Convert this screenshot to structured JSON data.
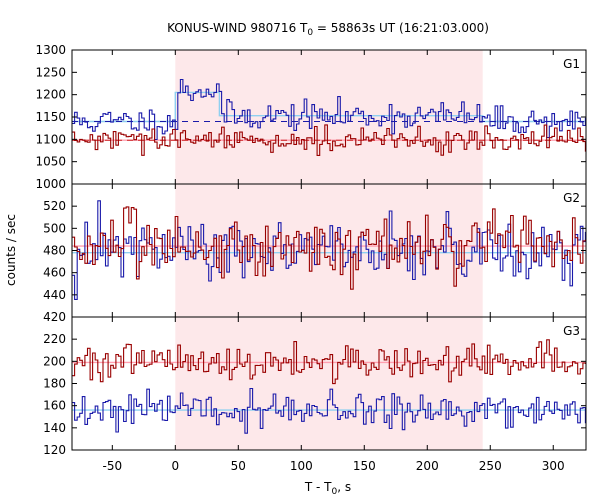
{
  "chart_data": {
    "type": "line",
    "title": "KONUS-WIND 980716 T",
    "title_sub": "0",
    "title_rest": " = 58863s UT (16:21:03.000)",
    "ylabel": "counts / sec",
    "xlabel": "T - T",
    "xlabel_sub": "0",
    "xlabel_rest": ", s",
    "xlim": [
      -82,
      326
    ],
    "xticks": [
      -50,
      0,
      50,
      100,
      150,
      200,
      250,
      300
    ],
    "highlight": {
      "from": 0,
      "to": 244,
      "color": "#fde8ea"
    },
    "colors": {
      "red": "#990000",
      "blue": "#1a1aaa",
      "red_fit": "#ff9fb0",
      "blue_fit": "#8fd0f0",
      "red_dash": "#cc2222"
    },
    "panels": [
      {
        "name": "G1",
        "ylim": [
          1000,
          1300
        ],
        "yticks": [
          1000,
          1050,
          1100,
          1150,
          1200,
          1250,
          1300
        ],
        "series": [
          {
            "color": "blue",
            "base": 1140,
            "noise": 16,
            "seed": 11,
            "bumps": [
              {
                "from": 0,
                "to": 35,
                "level": 70
              },
              {
                "from": 35,
                "to": 244,
                "level": 12
              }
            ]
          },
          {
            "color": "red",
            "base": 1098,
            "noise": 13,
            "seed": 29,
            "bumps": []
          }
        ],
        "fits": [
          {
            "color": "blue_fit",
            "steps": [
              [
                -82,
                1140
              ],
              [
                0,
                1140
              ],
              [
                0,
                1205
              ],
              [
                35,
                1205
              ],
              [
                35,
                1153
              ],
              [
                244,
                1153
              ],
              [
                244,
                1140
              ],
              [
                326,
                1140
              ]
            ]
          },
          {
            "color": "red_fit",
            "steps": [
              [
                -82,
                1098
              ],
              [
                326,
                1098
              ]
            ]
          }
        ],
        "dashes": [
          {
            "color": "blue",
            "value": 1140
          },
          {
            "color": "red_dash",
            "value": 1098
          }
        ]
      },
      {
        "name": "G2",
        "ylim": [
          420,
          540
        ],
        "yticks": [
          420,
          440,
          460,
          480,
          500,
          520
        ],
        "series": [
          {
            "color": "blue",
            "base": 480,
            "noise": 14,
            "seed": 47,
            "bumps": []
          },
          {
            "color": "red",
            "base": 484,
            "noise": 14,
            "seed": 83,
            "bumps": []
          }
        ],
        "fits": [
          {
            "color": "blue_fit",
            "steps": [
              [
                -82,
                478
              ],
              [
                326,
                478
              ]
            ]
          },
          {
            "color": "red_fit",
            "steps": [
              [
                -82,
                484
              ],
              [
                326,
                484
              ]
            ]
          }
        ],
        "dashes": []
      },
      {
        "name": "G3",
        "ylim": [
          120,
          240
        ],
        "yticks": [
          120,
          140,
          160,
          180,
          200,
          220
        ],
        "series": [
          {
            "color": "red",
            "base": 199,
            "noise": 8,
            "seed": 101,
            "bumps": []
          },
          {
            "color": "blue",
            "base": 156,
            "noise": 8,
            "seed": 131,
            "bumps": []
          }
        ],
        "fits": [
          {
            "color": "red_fit",
            "steps": [
              [
                -82,
                199
              ],
              [
                326,
                199
              ]
            ]
          },
          {
            "color": "blue_fit",
            "steps": [
              [
                -82,
                156
              ],
              [
                326,
                156
              ]
            ]
          }
        ],
        "dashes": []
      }
    ],
    "bin_width": 2.048
  }
}
